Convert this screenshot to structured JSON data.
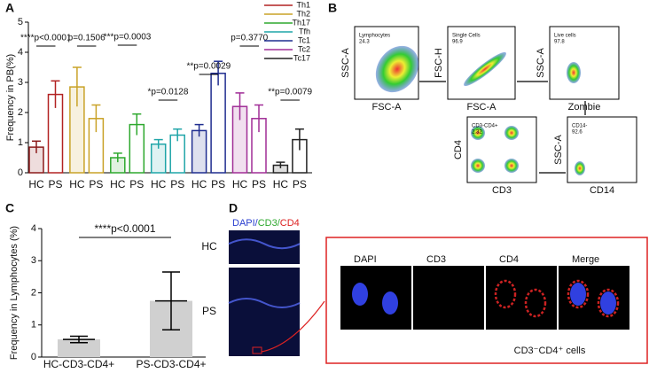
{
  "panel_labels": [
    "A",
    "B",
    "C",
    "D"
  ],
  "chart_data": [
    {
      "type": "bar",
      "ylabel": "Frequency in PB(%)",
      "categories": [
        "HC",
        "PS",
        "HC",
        "PS",
        "HC",
        "PS",
        "HC",
        "PS",
        "HC",
        "PS",
        "HC",
        "PS",
        "HC",
        "PS"
      ],
      "values": [
        0.85,
        2.6,
        2.85,
        1.8,
        0.5,
        1.6,
        0.95,
        1.25,
        1.4,
        3.3,
        2.2,
        1.8,
        0.25,
        1.1
      ],
      "errors": [
        0.2,
        0.45,
        0.65,
        0.45,
        0.15,
        0.35,
        0.15,
        0.2,
        0.2,
        0.4,
        0.45,
        0.45,
        0.1,
        0.35
      ],
      "colors": [
        "#8b1a1a",
        "#b22222",
        "#c9a227",
        "#c9a227",
        "#2ea82e",
        "#2ea82e",
        "#1fa5a8",
        "#1fa5a8",
        "#1f2d8f",
        "#1f2d8f",
        "#a02d96",
        "#a02d96",
        "#222222",
        "#222222"
      ],
      "legend": [
        {
          "name": "Th1",
          "color": "#b22222"
        },
        {
          "name": "Th2",
          "color": "#c9a227"
        },
        {
          "name": "Th17",
          "color": "#2ea82e"
        },
        {
          "name": "Tfh",
          "color": "#1fa5a8"
        },
        {
          "name": "Tc1",
          "color": "#1f2d8f"
        },
        {
          "name": "Tc2",
          "color": "#a02d96"
        },
        {
          "name": "Tc17",
          "color": "#222222"
        }
      ],
      "annotations": [
        "****p<0.0001",
        "p=0.1506",
        "***p=0.0003",
        "*p=0.0128",
        "**p=0.0029",
        "p=0.3770",
        "**p=0.0079"
      ],
      "ylim": [
        0,
        5
      ],
      "yticks": [
        0,
        1,
        2,
        3,
        4,
        5
      ]
    },
    {
      "type": "bar",
      "ylabel": "Frequency in Lymphocytes (%)",
      "categories": [
        "HC-CD3-CD4+",
        "PS-CD3-CD4+"
      ],
      "values": [
        0.55,
        1.75
      ],
      "errors": [
        0.1,
        0.9
      ],
      "colors": [
        "#d0d0d0",
        "#d0d0d0"
      ],
      "annotations": [
        "****p<0.0001"
      ],
      "ylim": [
        0,
        4
      ],
      "yticks": [
        0,
        1,
        2,
        3,
        4
      ]
    }
  ],
  "flow": {
    "plots": [
      {
        "ylabel": "SSC-A",
        "xlabel": "FSC-A",
        "gate": "Lymphocytes",
        "gate_value": "24.3"
      },
      {
        "ylabel": "FSC-H",
        "xlabel": "FSC-A",
        "gate": "Single Cells",
        "gate_value": "96.9"
      },
      {
        "ylabel": "SSC-A",
        "xlabel": "Zombie",
        "gate": "Live cells",
        "gate_value": "97.8"
      },
      {
        "ylabel": "CD4",
        "xlabel": "CD3",
        "gate": "CD3-CD4+",
        "gate_value": "2.32"
      },
      {
        "ylabel": "SSC-A",
        "xlabel": "CD14",
        "gate": "CD14-",
        "gate_value": "92.6"
      }
    ]
  },
  "imaging": {
    "stain_title": [
      "DAPI/",
      "CD3/",
      "CD4"
    ],
    "rows": [
      "HC",
      "PS"
    ],
    "channels": [
      "DAPI",
      "CD3",
      "CD4",
      "Merge"
    ],
    "caption": "CD3⁻CD4⁺ cells"
  }
}
